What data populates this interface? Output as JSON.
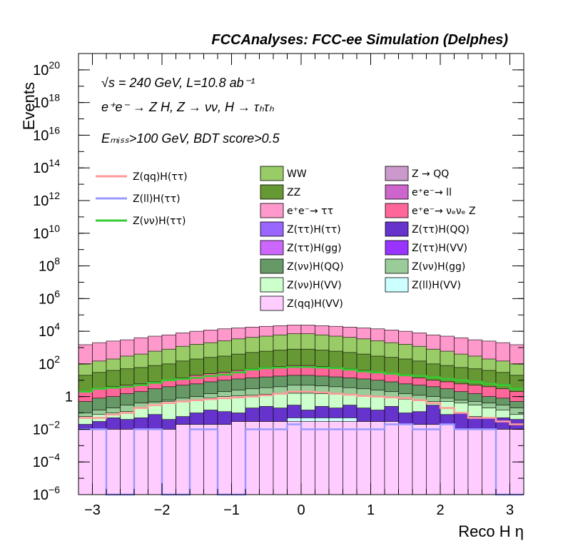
{
  "header": {
    "title": "FCCAnalyses: FCC-ee Simulation (Delphes)"
  },
  "annotations": {
    "line1": "√s = 240 GeV, L=10.8 ab⁻¹",
    "line2": "e⁺e⁻ → Z H, Z → νν, H → τₕτₕ",
    "line3": "Eₘᵢₛₛ>100 GeV, BDT score>0.5"
  },
  "chart_data": {
    "type": "bar",
    "stacked": true,
    "title": "FCCAnalyses: FCC-ee Simulation (Delphes)",
    "xlabel": "Reco H η",
    "ylabel": "Events",
    "xlim": [
      -3.2,
      3.2
    ],
    "ylim": [
      1e-06,
      1e+21
    ],
    "yscale": "log",
    "grid": false,
    "bin_edges": [
      -3.2,
      -3.0,
      -2.8,
      -2.6,
      -2.4,
      -2.2,
      -2.0,
      -1.8,
      -1.6,
      -1.4,
      -1.2,
      -1.0,
      -0.8,
      -0.6,
      -0.4,
      -0.2,
      0.0,
      0.2,
      0.4,
      0.6,
      0.8,
      1.0,
      1.2,
      1.4,
      1.6,
      1.8,
      2.0,
      2.2,
      2.4,
      2.6,
      2.8,
      3.0,
      3.2
    ],
    "xticks": [
      {
        "value": -3,
        "label": "−3"
      },
      {
        "value": -2,
        "label": "−2"
      },
      {
        "value": -1,
        "label": "−1"
      },
      {
        "value": 0,
        "label": "0"
      },
      {
        "value": 1,
        "label": "1"
      },
      {
        "value": 2,
        "label": "2"
      },
      {
        "value": 3,
        "label": "3"
      }
    ],
    "yticks": [
      {
        "value": 1e-06,
        "base": "10",
        "exp": "−6"
      },
      {
        "value": 0.0001,
        "base": "10",
        "exp": "−4"
      },
      {
        "value": 0.01,
        "base": "10",
        "exp": "−2"
      },
      {
        "value": 1,
        "base": "1",
        "exp": ""
      },
      {
        "value": 100.0,
        "base": "10",
        "exp": "2"
      },
      {
        "value": 10000.0,
        "base": "10",
        "exp": "4"
      },
      {
        "value": 1000000.0,
        "base": "10",
        "exp": "6"
      },
      {
        "value": 100000000.0,
        "base": "10",
        "exp": "8"
      },
      {
        "value": 10000000000.0,
        "base": "10",
        "exp": "10"
      },
      {
        "value": 1000000000000.0,
        "base": "10",
        "exp": "12"
      },
      {
        "value": 100000000000000.0,
        "base": "10",
        "exp": "14"
      },
      {
        "value": 1e+16,
        "base": "10",
        "exp": "16"
      },
      {
        "value": 1e+18,
        "base": "10",
        "exp": "18"
      },
      {
        "value": 1e+20,
        "base": "10",
        "exp": "20"
      }
    ],
    "stack_boundaries": [
      {
        "name": "Z(qq)H(VV)",
        "color": "#ffccff",
        "values": [
          0.01,
          0.01,
          0.01,
          0.01,
          0.01,
          0.01,
          0.01,
          0.02,
          0.02,
          0.02,
          0.02,
          0.03,
          0.03,
          0.03,
          0.03,
          0.03,
          0.03,
          0.03,
          0.03,
          0.03,
          0.03,
          0.03,
          0.03,
          0.02,
          0.02,
          0.02,
          0.02,
          0.01,
          0.01,
          0.01,
          0.01,
          0.01
        ]
      },
      {
        "name": "Z(ll)H(VV)",
        "color": "#ccffff",
        "values": [
          0.01,
          0.01,
          0.01,
          0.01,
          0.01,
          0.01,
          0.01,
          0.02,
          0.02,
          0.02,
          0.02,
          0.03,
          0.03,
          0.03,
          0.03,
          0.05,
          0.05,
          0.05,
          0.05,
          0.05,
          0.03,
          0.03,
          0.03,
          0.02,
          0.02,
          0.02,
          0.02,
          0.01,
          0.01,
          0.01,
          0.01,
          0.01
        ]
      },
      {
        "name": "Z(ττ)H(QQ)",
        "color": "#6633cc",
        "values": [
          0.02,
          0.03,
          0.05,
          0.04,
          0.05,
          0.08,
          0.04,
          0.06,
          0.1,
          0.15,
          0.12,
          0.1,
          0.2,
          0.25,
          0.2,
          0.3,
          0.15,
          0.25,
          0.2,
          0.3,
          0.2,
          0.15,
          0.25,
          0.1,
          0.12,
          0.3,
          0.08,
          0.1,
          0.06,
          0.05,
          0.05,
          0.04
        ]
      },
      {
        "name": "Z(νν)H(VV)",
        "color": "#ccffcc",
        "values": [
          0.06,
          0.08,
          0.1,
          0.12,
          0.2,
          0.4,
          0.5,
          0.5,
          0.6,
          0.8,
          1.0,
          1.1,
          1.2,
          1.4,
          1.5,
          1.6,
          1.6,
          1.5,
          1.4,
          1.3,
          1.2,
          1.0,
          0.9,
          0.7,
          0.6,
          0.5,
          0.5,
          0.4,
          0.3,
          0.2,
          0.15,
          0.08
        ]
      },
      {
        "name": "Z(νν)H(gg)",
        "color": "#99cc99",
        "values": [
          0.1,
          0.15,
          0.2,
          0.3,
          0.4,
          0.5,
          0.6,
          0.8,
          1.0,
          1.5,
          2,
          2.5,
          3,
          3.5,
          4,
          5,
          5,
          4.5,
          4,
          3.5,
          3,
          2.5,
          2,
          1.5,
          1.2,
          1.0,
          0.8,
          0.6,
          0.5,
          0.4,
          0.3,
          0.2
        ]
      },
      {
        "name": "Z(νν)H(QQ)",
        "color": "#669966",
        "values": [
          0.5,
          0.8,
          1,
          1.5,
          2,
          3,
          4,
          5,
          6,
          8,
          10,
          12,
          14,
          16,
          18,
          20,
          20,
          18,
          16,
          14,
          12,
          10,
          8,
          6,
          5,
          4,
          3,
          2,
          1.5,
          1,
          0.8,
          0.5
        ]
      },
      {
        "name": "e⁺e⁻→ νₑνₑ Z",
        "color": "#ff6699",
        "values": [
          2,
          3,
          4,
          5,
          6,
          8,
          10,
          14,
          20,
          25,
          30,
          40,
          50,
          60,
          70,
          80,
          80,
          70,
          60,
          50,
          40,
          30,
          25,
          20,
          14,
          10,
          8,
          6,
          5,
          4,
          3,
          2
        ]
      },
      {
        "name": "ZZ",
        "color": "#669933",
        "values": [
          20,
          30,
          40,
          50,
          60,
          80,
          100,
          150,
          200,
          250,
          300,
          400,
          500,
          600,
          700,
          800,
          800,
          700,
          600,
          500,
          400,
          300,
          250,
          200,
          150,
          100,
          80,
          60,
          50,
          40,
          30,
          20
        ]
      },
      {
        "name": "WW",
        "color": "#99cc66",
        "values": [
          100,
          150,
          200,
          300,
          400,
          600,
          800,
          1200,
          1600,
          2000,
          2600,
          3400,
          4200,
          5000,
          6000,
          7000,
          7000,
          6000,
          5000,
          4200,
          3400,
          2600,
          2000,
          1600,
          1200,
          800,
          600,
          400,
          300,
          200,
          150,
          100
        ]
      },
      {
        "name": "e⁺e⁻→ ττ",
        "color": "#ff99cc",
        "values": [
          1500,
          2000,
          2500,
          3000,
          4000,
          5000,
          6000,
          8000,
          10000,
          12000,
          14000,
          16000,
          18000,
          20000,
          22000,
          24000,
          24000,
          22000,
          20000,
          18000,
          16000,
          14000,
          12000,
          10000,
          8000,
          6000,
          5000,
          4000,
          3000,
          2500,
          2000,
          1500
        ]
      }
    ],
    "hidden_fills": [
      {
        "name": "Z(ττ)H(ττ)",
        "color": "#9966ff"
      },
      {
        "name": "Z(ττ)H(gg)",
        "color": "#cc66ff"
      },
      {
        "name": "Z(ττ)H(VV)",
        "color": "#9933ff"
      },
      {
        "name": "Z → QQ",
        "color": "#cc99cc"
      },
      {
        "name": "e⁺e⁻→ ll",
        "color": "#cc66cc"
      }
    ],
    "line_series": [
      {
        "name": "Z(qq)H(ττ)",
        "color": "#ff9999",
        "values": [
          0.05,
          0.05,
          0.08,
          0.1,
          0.2,
          0.3,
          0.4,
          0.5,
          0.6,
          0.7,
          0.8,
          0.9,
          1.0,
          1.2,
          1.5,
          2,
          2,
          1.8,
          1.5,
          1.3,
          1.1,
          1.0,
          0.9,
          0.8,
          0.6,
          0.4,
          0.2,
          0.1,
          0.05,
          0.05,
          0.03,
          0.02
        ]
      },
      {
        "name": "Z(ll)H(ττ)",
        "color": "#9999ff",
        "values": [
          0.01,
          0.01,
          1e-06,
          1e-06,
          0.01,
          0.01,
          1e-06,
          1e-06,
          0.01,
          0.01,
          1e-06,
          1e-06,
          0.01,
          0.01,
          0.01,
          0.02,
          0.01,
          0.01,
          0.01,
          0.01,
          0.01,
          0.01,
          0.02,
          0.02,
          0.01,
          0.01,
          0.02,
          0.01,
          0.01,
          0.01,
          1e-06,
          1e-06
        ]
      },
      {
        "name": "Z(νν)H(ττ)",
        "color": "#33cc33",
        "values": [
          2,
          3,
          3.5,
          4,
          5,
          7,
          10,
          12,
          14,
          18,
          22,
          30,
          45,
          55,
          60,
          65,
          65,
          60,
          55,
          45,
          35,
          30,
          25,
          20,
          18,
          15,
          12,
          10,
          8,
          6,
          5,
          3
        ]
      }
    ],
    "legend": {
      "placement": "upper area, three columns",
      "line_entries": [
        "Z(qq)H(ττ)",
        "Z(ll)H(ττ)",
        "Z(νν)H(ττ)"
      ],
      "fill_entries": [
        {
          "label": "WW",
          "color": "#99cc66"
        },
        {
          "label": "Z → QQ",
          "color": "#cc99cc"
        },
        {
          "label": "ZZ",
          "color": "#669933"
        },
        {
          "label": "e⁺e⁻→ ll",
          "color": "#cc66cc"
        },
        {
          "label": "e⁺e⁻→ ττ",
          "color": "#ff99cc"
        },
        {
          "label": "e⁺e⁻→ νₑνₑ Z",
          "color": "#ff6699"
        },
        {
          "label": "Z(ττ)H(ττ)",
          "color": "#9966ff"
        },
        {
          "label": "Z(ττ)H(QQ)",
          "color": "#6633cc"
        },
        {
          "label": "Z(ττ)H(gg)",
          "color": "#cc66ff"
        },
        {
          "label": "Z(ττ)H(VV)",
          "color": "#9933ff"
        },
        {
          "label": "Z(νν)H(QQ)",
          "color": "#669966"
        },
        {
          "label": "Z(νν)H(gg)",
          "color": "#99cc99"
        },
        {
          "label": "Z(νν)H(VV)",
          "color": "#ccffcc"
        },
        {
          "label": "Z(ll)H(VV)",
          "color": "#ccffff"
        },
        {
          "label": "Z(qq)H(VV)",
          "color": "#ffccff"
        }
      ]
    }
  }
}
